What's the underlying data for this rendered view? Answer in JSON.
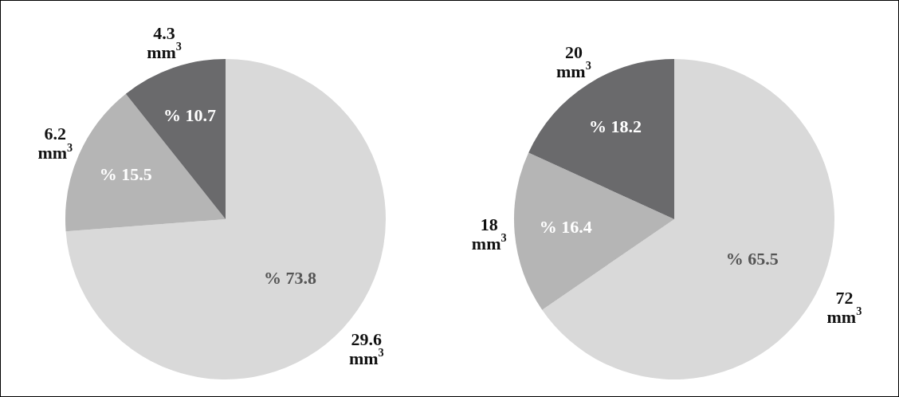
{
  "chart_data": [
    {
      "type": "pie",
      "categories": [
        "29.6 mm$^{3}$",
        "6.2 mm$^{3}$",
        "4.3 mm$^{3}$"
      ],
      "values": [
        73.8,
        15.5,
        10.7
      ],
      "value_labels": [
        "% 73.8",
        "% 15.5",
        "% 10.7"
      ],
      "colors": [
        "#d9d9d9",
        "#b5b5b5",
        "#6a6a6c"
      ],
      "legend": false
    },
    {
      "type": "pie",
      "categories": [
        "72 mm$^{3}$",
        "18 mm$^{3}$",
        "20 mm$^{3}$"
      ],
      "values": [
        65.5,
        16.4,
        18.2
      ],
      "value_labels": [
        "% 65.5",
        "% 16.4",
        "% 18.2"
      ],
      "colors": [
        "#d9d9d9",
        "#b5b5b5",
        "#6a6a6c"
      ],
      "legend": false
    }
  ]
}
